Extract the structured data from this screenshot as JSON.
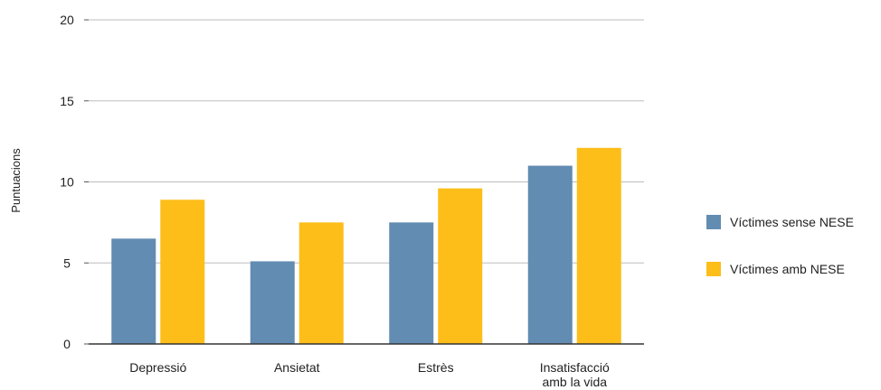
{
  "chart_data": {
    "type": "bar",
    "ylabel": "Puntuacions",
    "xlabel": "",
    "ylim": [
      0,
      20
    ],
    "yticks": [
      0,
      5,
      10,
      15,
      20
    ],
    "grid": true,
    "legend_position": "right",
    "categories": [
      [
        "Depressió"
      ],
      [
        "Ansietat"
      ],
      [
        "Estrès"
      ],
      [
        "Insatisfacció",
        "amb la vida"
      ]
    ],
    "series": [
      {
        "name": "Víctimes sense NESE",
        "color": "#628CB2",
        "values": [
          6.5,
          5.1,
          7.5,
          11.0
        ]
      },
      {
        "name": "Víctimes amb NESE",
        "color": "#FDBE1A",
        "values": [
          8.9,
          7.5,
          9.6,
          12.1
        ]
      }
    ]
  }
}
